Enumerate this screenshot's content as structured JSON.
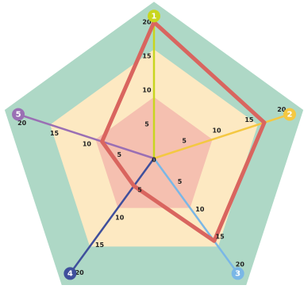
{
  "chart_data": {
    "type": "radar",
    "axes": [
      {
        "label": "1",
        "color": "#c8d61e"
      },
      {
        "label": "2",
        "color": "#f4c842"
      },
      {
        "label": "3",
        "color": "#7ab7e6"
      },
      {
        "label": "4",
        "color": "#3f4f9c"
      },
      {
        "label": "5",
        "color": "#9a6fb4"
      }
    ],
    "r_range": [
      0,
      20
    ],
    "ticks": [
      "0",
      "5",
      "10",
      "15",
      "20"
    ],
    "bands": [
      {
        "from": 0,
        "to": 9,
        "color": "#f5c0b0"
      },
      {
        "from": 9,
        "to": 16,
        "color": "#fde9c2"
      },
      {
        "from": 16,
        "to": 23,
        "color": "#aed8c6"
      }
    ],
    "series": [
      {
        "values": [
          20,
          17,
          15,
          5,
          8
        ],
        "color": "#d9655f"
      }
    ]
  }
}
